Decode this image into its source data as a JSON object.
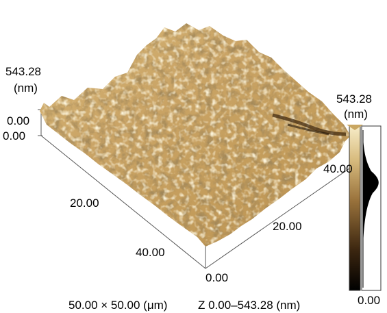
{
  "z_axis": {
    "max": "543.28",
    "unit": "(nm)",
    "min_top": "0.00",
    "min_bottom": "0.00"
  },
  "x_axis": {
    "mid": "20.00",
    "end": "40.00"
  },
  "y_axis": {
    "origin": "0.00",
    "mid": "20.00",
    "end": "40.00"
  },
  "colorbar": {
    "max": "543.28",
    "unit": "(nm)",
    "min": "0.00"
  },
  "caption": {
    "scan_size": "50.00 × 50.00 (μm)",
    "z_range": "Z 0.00–543.28 (nm)"
  },
  "colors": {
    "light": "#f2e4b6",
    "mid": "#c9a661",
    "dark": "#5a3b18",
    "black": "#000000"
  }
}
